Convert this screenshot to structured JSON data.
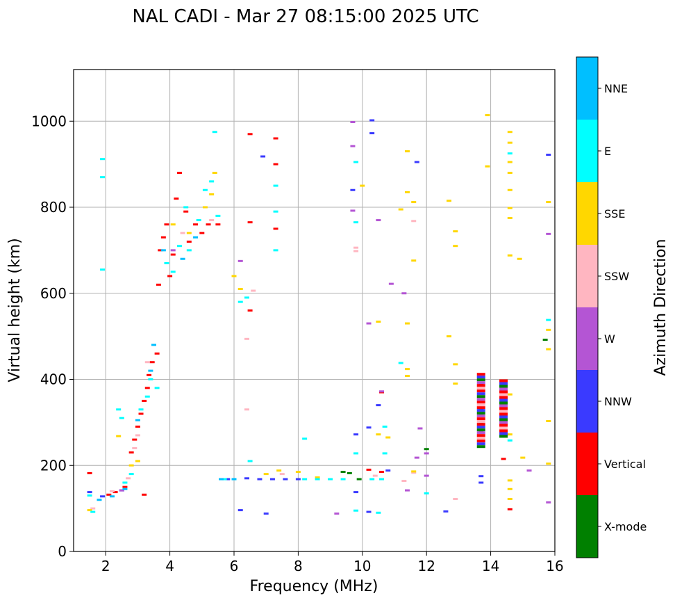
{
  "chart_data": {
    "type": "scatter",
    "title": "NAL CADI - Mar 27 08:15:00 2025 UTC",
    "xlabel": "Frequency (MHz)",
    "ylabel": "Virtual height (km)",
    "xlim": [
      1.0,
      16.0
    ],
    "ylim": [
      0,
      1120
    ],
    "x_ticks": [
      2,
      4,
      6,
      8,
      10,
      12,
      14,
      16
    ],
    "y_ticks": [
      0,
      200,
      400,
      600,
      800,
      1000
    ],
    "grid": true,
    "colorbar": {
      "label": "Azimuth Direction",
      "position": "right",
      "categories": [
        {
          "name": "X-mode",
          "color": "#008000"
        },
        {
          "name": "Vertical",
          "color": "#ff0000"
        },
        {
          "name": "NNW",
          "color": "#3a3aff"
        },
        {
          "name": "W",
          "color": "#b455d4"
        },
        {
          "name": "SSW",
          "color": "#ffb6c1"
        },
        {
          "name": "SSE",
          "color": "#ffd700"
        },
        {
          "name": "E",
          "color": "#00ffff"
        },
        {
          "name": "NNE",
          "color": "#00bfff"
        }
      ]
    },
    "series": [
      {
        "name": "X-mode",
        "points": [
          [
            9.4,
            185
          ],
          [
            9.6,
            182
          ],
          [
            9.9,
            168
          ],
          [
            12.0,
            238
          ],
          [
            13.7,
            300
          ],
          [
            13.7,
            330
          ],
          [
            13.7,
            280
          ],
          [
            15.7,
            492
          ]
        ]
      },
      {
        "name": "Vertical",
        "points": [
          [
            1.5,
            182
          ],
          [
            2.1,
            132
          ],
          [
            2.3,
            138
          ],
          [
            2.6,
            150
          ],
          [
            2.8,
            230
          ],
          [
            2.9,
            260
          ],
          [
            3.0,
            290
          ],
          [
            3.1,
            320
          ],
          [
            3.2,
            350
          ],
          [
            3.3,
            380
          ],
          [
            3.35,
            410
          ],
          [
            3.45,
            440
          ],
          [
            3.6,
            460
          ],
          [
            3.65,
            620
          ],
          [
            3.7,
            700
          ],
          [
            3.8,
            730
          ],
          [
            3.9,
            760
          ],
          [
            4.0,
            640
          ],
          [
            4.1,
            690
          ],
          [
            4.2,
            820
          ],
          [
            4.3,
            880
          ],
          [
            4.5,
            790
          ],
          [
            4.6,
            720
          ],
          [
            4.8,
            760
          ],
          [
            5.0,
            740
          ],
          [
            5.2,
            760
          ],
          [
            5.5,
            760
          ],
          [
            6.5,
            560
          ],
          [
            6.5,
            765
          ],
          [
            6.5,
            970
          ],
          [
            7.3,
            750
          ],
          [
            7.3,
            900
          ],
          [
            7.3,
            960
          ],
          [
            3.2,
            132
          ],
          [
            10.2,
            190
          ],
          [
            10.6,
            185
          ],
          [
            10.6,
            370
          ],
          [
            14.4,
            215
          ],
          [
            14.6,
            98
          ],
          [
            13.7,
            390
          ],
          [
            13.7,
            360
          ],
          [
            14.4,
            310
          ],
          [
            14.4,
            350
          ]
        ]
      },
      {
        "name": "NNW",
        "points": [
          [
            1.5,
            138
          ],
          [
            1.9,
            128
          ],
          [
            2.5,
            142
          ],
          [
            5.8,
            168
          ],
          [
            6.4,
            170
          ],
          [
            6.8,
            168
          ],
          [
            7.2,
            168
          ],
          [
            7.6,
            168
          ],
          [
            8.0,
            168
          ],
          [
            9.8,
            138
          ],
          [
            10.2,
            92
          ],
          [
            10.3,
            1002
          ],
          [
            10.3,
            972
          ],
          [
            10.2,
            288
          ],
          [
            10.5,
            340
          ],
          [
            10.8,
            188
          ],
          [
            11.7,
            905
          ],
          [
            12.6,
            93
          ],
          [
            13.7,
            175
          ],
          [
            13.7,
            160
          ],
          [
            14.4,
            270
          ],
          [
            15.8,
            922
          ],
          [
            6.9,
            918
          ],
          [
            7.0,
            88
          ],
          [
            6.2,
            96
          ],
          [
            9.8,
            272
          ],
          [
            9.7,
            840
          ]
        ]
      },
      {
        "name": "W",
        "points": [
          [
            2.5,
            142
          ],
          [
            4.1,
            700
          ],
          [
            6.2,
            675
          ],
          [
            9.2,
            88
          ],
          [
            9.7,
            998
          ],
          [
            9.7,
            942
          ],
          [
            9.7,
            792
          ],
          [
            10.2,
            530
          ],
          [
            10.5,
            770
          ],
          [
            10.6,
            372
          ],
          [
            10.9,
            622
          ],
          [
            11.3,
            600
          ],
          [
            11.8,
            286
          ],
          [
            12.0,
            228
          ],
          [
            12.0,
            176
          ],
          [
            13.7,
            320
          ],
          [
            14.4,
            282
          ],
          [
            15.2,
            188
          ],
          [
            15.8,
            738
          ],
          [
            15.8,
            114
          ],
          [
            11.4,
            142
          ],
          [
            11.7,
            218
          ]
        ]
      },
      {
        "name": "SSW",
        "points": [
          [
            1.6,
            100
          ],
          [
            2.2,
            140
          ],
          [
            2.7,
            170
          ],
          [
            2.9,
            240
          ],
          [
            3.0,
            270
          ],
          [
            3.3,
            440
          ],
          [
            4.4,
            740
          ],
          [
            5.3,
            770
          ],
          [
            6.4,
            330
          ],
          [
            6.4,
            494
          ],
          [
            6.6,
            606
          ],
          [
            7.5,
            180
          ],
          [
            9.8,
            706
          ],
          [
            9.8,
            698
          ],
          [
            10.4,
            176
          ],
          [
            11.3,
            164
          ],
          [
            11.6,
            768
          ],
          [
            12.9,
            122
          ],
          [
            11.6,
            183
          ]
        ]
      },
      {
        "name": "SSE",
        "points": [
          [
            1.5,
            96
          ],
          [
            2.4,
            268
          ],
          [
            2.8,
            200
          ],
          [
            3.0,
            210
          ],
          [
            4.1,
            760
          ],
          [
            4.6,
            740
          ],
          [
            5.1,
            800
          ],
          [
            5.3,
            830
          ],
          [
            5.4,
            880
          ],
          [
            6.0,
            640
          ],
          [
            6.2,
            610
          ],
          [
            7.0,
            180
          ],
          [
            7.4,
            188
          ],
          [
            8.0,
            185
          ],
          [
            8.6,
            172
          ],
          [
            10.0,
            850
          ],
          [
            10.5,
            534
          ],
          [
            10.5,
            272
          ],
          [
            10.8,
            265
          ],
          [
            11.4,
            930
          ],
          [
            11.4,
            835
          ],
          [
            11.4,
            530
          ],
          [
            11.4,
            424
          ],
          [
            11.4,
            408
          ],
          [
            11.2,
            795
          ],
          [
            11.6,
            812
          ],
          [
            11.6,
            676
          ],
          [
            12.7,
            815
          ],
          [
            12.7,
            500
          ],
          [
            12.9,
            744
          ],
          [
            12.9,
            710
          ],
          [
            12.9,
            435
          ],
          [
            12.9,
            390
          ],
          [
            13.9,
            1014
          ],
          [
            13.9,
            895
          ],
          [
            14.6,
            975
          ],
          [
            14.6,
            950
          ],
          [
            14.6,
            905
          ],
          [
            14.6,
            880
          ],
          [
            14.6,
            840
          ],
          [
            14.6,
            798
          ],
          [
            14.6,
            775
          ],
          [
            14.6,
            688
          ],
          [
            14.6,
            365
          ],
          [
            14.6,
            272
          ],
          [
            14.6,
            165
          ],
          [
            14.6,
            145
          ],
          [
            14.6,
            122
          ],
          [
            14.9,
            680
          ],
          [
            15.0,
            218
          ],
          [
            15.8,
            812
          ],
          [
            15.8,
            515
          ],
          [
            15.8,
            470
          ],
          [
            15.8,
            303
          ],
          [
            15.8,
            204
          ],
          [
            11.6,
            186
          ]
        ]
      },
      {
        "name": "E",
        "points": [
          [
            1.5,
            130
          ],
          [
            1.6,
            92
          ],
          [
            2.4,
            330
          ],
          [
            2.5,
            310
          ],
          [
            2.6,
            160
          ],
          [
            2.8,
            180
          ],
          [
            3.1,
            330
          ],
          [
            3.3,
            360
          ],
          [
            3.4,
            400
          ],
          [
            3.6,
            380
          ],
          [
            3.9,
            670
          ],
          [
            4.1,
            650
          ],
          [
            4.3,
            710
          ],
          [
            4.5,
            800
          ],
          [
            4.6,
            700
          ],
          [
            4.9,
            770
          ],
          [
            5.1,
            840
          ],
          [
            5.3,
            860
          ],
          [
            5.5,
            780
          ],
          [
            5.7,
            168
          ],
          [
            6.0,
            168
          ],
          [
            6.2,
            580
          ],
          [
            6.4,
            590
          ],
          [
            6.5,
            210
          ],
          [
            7.3,
            850
          ],
          [
            7.3,
            790
          ],
          [
            7.3,
            700
          ],
          [
            8.2,
            168
          ],
          [
            8.6,
            168
          ],
          [
            9.0,
            168
          ],
          [
            9.4,
            168
          ],
          [
            8.2,
            262
          ],
          [
            9.8,
            905
          ],
          [
            9.8,
            765
          ],
          [
            9.8,
            228
          ],
          [
            9.8,
            95
          ],
          [
            10.3,
            168
          ],
          [
            10.5,
            90
          ],
          [
            10.6,
            168
          ],
          [
            10.7,
            290
          ],
          [
            10.7,
            228
          ],
          [
            11.2,
            438
          ],
          [
            12.0,
            135
          ],
          [
            14.6,
            925
          ],
          [
            14.6,
            258
          ],
          [
            15.8,
            538
          ],
          [
            1.9,
            912
          ],
          [
            1.9,
            870
          ],
          [
            1.9,
            655
          ],
          [
            5.4,
            975
          ]
        ]
      },
      {
        "name": "NNE",
        "points": [
          [
            1.8,
            120
          ],
          [
            2.2,
            128
          ],
          [
            2.6,
            145
          ],
          [
            3.0,
            305
          ],
          [
            3.4,
            420
          ],
          [
            3.5,
            480
          ],
          [
            3.8,
            700
          ],
          [
            4.4,
            680
          ],
          [
            4.8,
            730
          ],
          [
            5.6,
            168
          ],
          [
            6.0,
            168
          ]
        ]
      }
    ],
    "bands": [
      {
        "name": "Vertical",
        "x": 13.7,
        "y_range": [
          245,
          415
        ]
      },
      {
        "name": "Vertical",
        "x": 14.4,
        "y_range": [
          265,
          400
        ]
      }
    ]
  }
}
